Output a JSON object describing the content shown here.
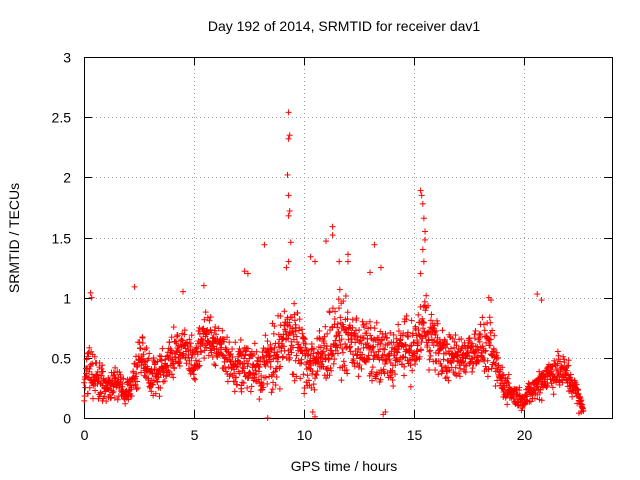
{
  "chart_data": {
    "type": "scatter",
    "title": "Day 192 of 2014, SRMTID for receiver dav1",
    "xlabel": "GPS time / hours",
    "ylabel": "SRMTID / TECUs",
    "xlim": [
      0,
      24
    ],
    "ylim": [
      0,
      3
    ],
    "xticks": [
      0,
      5,
      10,
      15,
      20
    ],
    "yticks": [
      0,
      0.5,
      1,
      1.5,
      2,
      2.5,
      3
    ],
    "ytick_labels": [
      "0",
      "0.5",
      "1",
      "1.5",
      "2",
      "2.5",
      "3"
    ],
    "grid": true,
    "marker": "+",
    "color": "#ff0000",
    "envelope_hours": [
      0,
      0.3,
      0.7,
      1.0,
      1.5,
      1.9,
      2.2,
      2.6,
      3.0,
      3.5,
      4.0,
      4.5,
      5.0,
      5.5,
      6.0,
      6.5,
      7.0,
      7.5,
      8.0,
      8.5,
      9.0,
      9.5,
      10.0,
      10.5,
      11.0,
      11.5,
      12.0,
      12.5,
      13.0,
      13.5,
      14.0,
      14.5,
      15.0,
      15.5,
      16.0,
      16.5,
      17.0,
      17.5,
      18.0,
      18.5,
      19.0,
      19.5,
      20.0,
      20.5,
      21.0,
      21.5,
      22.0,
      22.3,
      22.7
    ],
    "envelope_mean_tecu": [
      0.3,
      0.4,
      0.3,
      0.25,
      0.3,
      0.2,
      0.3,
      0.55,
      0.35,
      0.4,
      0.5,
      0.6,
      0.45,
      0.7,
      0.6,
      0.5,
      0.4,
      0.45,
      0.4,
      0.5,
      0.6,
      0.7,
      0.5,
      0.45,
      0.55,
      0.7,
      0.65,
      0.6,
      0.55,
      0.5,
      0.5,
      0.6,
      0.55,
      0.8,
      0.6,
      0.5,
      0.5,
      0.55,
      0.6,
      0.55,
      0.3,
      0.2,
      0.15,
      0.25,
      0.35,
      0.4,
      0.35,
      0.25,
      0.08
    ],
    "envelope_spread_tecu": [
      0.2,
      0.3,
      0.2,
      0.15,
      0.15,
      0.1,
      0.2,
      0.3,
      0.2,
      0.25,
      0.25,
      0.3,
      0.2,
      0.25,
      0.25,
      0.25,
      0.25,
      0.3,
      0.25,
      0.35,
      0.4,
      0.4,
      0.35,
      0.35,
      0.35,
      0.4,
      0.35,
      0.35,
      0.3,
      0.35,
      0.3,
      0.3,
      0.3,
      0.4,
      0.3,
      0.25,
      0.25,
      0.25,
      0.25,
      0.3,
      0.2,
      0.12,
      0.1,
      0.15,
      0.2,
      0.2,
      0.2,
      0.15,
      0.03
    ],
    "notable_points": [
      {
        "x": 9.3,
        "y": 2.54
      },
      {
        "x": 9.35,
        "y": 2.35
      },
      {
        "x": 9.3,
        "y": 2.32
      },
      {
        "x": 9.25,
        "y": 2.02
      },
      {
        "x": 9.3,
        "y": 1.85
      },
      {
        "x": 9.35,
        "y": 1.72
      },
      {
        "x": 9.3,
        "y": 1.68
      },
      {
        "x": 9.4,
        "y": 1.46
      },
      {
        "x": 8.2,
        "y": 1.44
      },
      {
        "x": 9.3,
        "y": 1.3
      },
      {
        "x": 9.2,
        "y": 1.25
      },
      {
        "x": 15.3,
        "y": 1.89
      },
      {
        "x": 15.35,
        "y": 1.85
      },
      {
        "x": 15.4,
        "y": 1.78
      },
      {
        "x": 15.45,
        "y": 1.66
      },
      {
        "x": 15.5,
        "y": 1.55
      },
      {
        "x": 15.5,
        "y": 1.48
      },
      {
        "x": 15.4,
        "y": 1.4
      },
      {
        "x": 15.45,
        "y": 1.3
      },
      {
        "x": 15.3,
        "y": 1.2
      },
      {
        "x": 11.3,
        "y": 1.59
      },
      {
        "x": 11.3,
        "y": 1.52
      },
      {
        "x": 11.0,
        "y": 1.47
      },
      {
        "x": 13.2,
        "y": 1.44
      },
      {
        "x": 12.0,
        "y": 1.36
      },
      {
        "x": 12.0,
        "y": 1.3
      },
      {
        "x": 10.3,
        "y": 1.34
      },
      {
        "x": 10.5,
        "y": 1.3
      },
      {
        "x": 11.6,
        "y": 1.3
      },
      {
        "x": 13.5,
        "y": 1.25
      },
      {
        "x": 13.0,
        "y": 1.21
      },
      {
        "x": 7.3,
        "y": 1.22
      },
      {
        "x": 7.45,
        "y": 1.2
      },
      {
        "x": 0.3,
        "y": 1.04
      },
      {
        "x": 0.35,
        "y": 1.0
      },
      {
        "x": 2.3,
        "y": 1.09
      },
      {
        "x": 4.5,
        "y": 1.05
      },
      {
        "x": 5.45,
        "y": 1.1
      },
      {
        "x": 18.4,
        "y": 1.0
      },
      {
        "x": 18.5,
        "y": 0.98
      },
      {
        "x": 20.6,
        "y": 1.03
      },
      {
        "x": 20.8,
        "y": 0.98
      },
      {
        "x": 8.35,
        "y": 0.0
      },
      {
        "x": 10.5,
        "y": 0.01
      },
      {
        "x": 10.4,
        "y": 0.05
      },
      {
        "x": 13.6,
        "y": 0.03
      },
      {
        "x": 13.7,
        "y": 0.05
      },
      {
        "x": 22.5,
        "y": 0.04
      },
      {
        "x": 22.6,
        "y": 0.05
      },
      {
        "x": 22.7,
        "y": 0.06
      }
    ]
  }
}
